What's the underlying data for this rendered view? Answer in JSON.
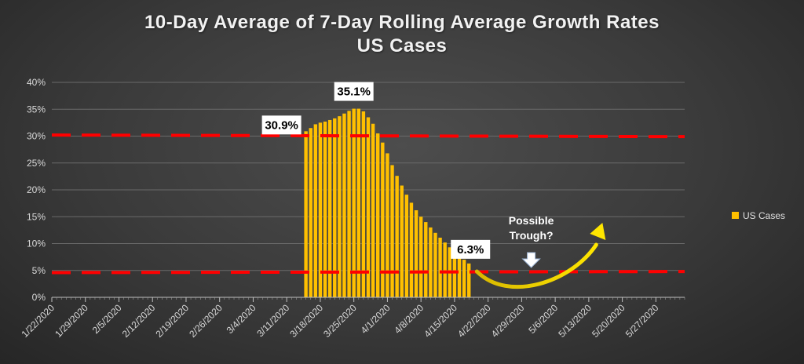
{
  "chart_data": {
    "type": "bar",
    "title": "10-Day Average of 7-Day Rolling Average Growth Rates",
    "subtitle": "US Cases",
    "ylim": [
      0,
      40
    ],
    "y_ticks": [
      "0%",
      "5%",
      "10%",
      "15%",
      "20%",
      "25%",
      "30%",
      "35%",
      "40%"
    ],
    "x_tick_labels": [
      "1/22/2020",
      "1/29/2020",
      "2/5/2020",
      "2/12/2020",
      "2/19/2020",
      "2/26/2020",
      "3/4/2020",
      "3/11/2020",
      "3/18/2020",
      "3/25/2020",
      "4/1/2020",
      "4/8/2020",
      "4/15/2020",
      "4/22/2020",
      "4/29/2020",
      "5/6/2020",
      "5/13/2020",
      "5/20/2020",
      "5/27/2020"
    ],
    "x_start": "1/22/2020",
    "x_end": "6/2/2020",
    "grid": true,
    "legend_position": "right",
    "series": [
      {
        "name": "US Cases",
        "color": "#FFC000",
        "x": [
          "3/15/2020",
          "3/16/2020",
          "3/17/2020",
          "3/18/2020",
          "3/19/2020",
          "3/20/2020",
          "3/21/2020",
          "3/22/2020",
          "3/23/2020",
          "3/24/2020",
          "3/25/2020",
          "3/26/2020",
          "3/27/2020",
          "3/28/2020",
          "3/29/2020",
          "3/30/2020",
          "3/31/2020",
          "4/1/2020",
          "4/2/2020",
          "4/3/2020",
          "4/4/2020",
          "4/5/2020",
          "4/6/2020",
          "4/7/2020",
          "4/8/2020",
          "4/9/2020",
          "4/10/2020",
          "4/11/2020",
          "4/12/2020",
          "4/13/2020",
          "4/14/2020",
          "4/15/2020",
          "4/16/2020",
          "4/17/2020",
          "4/18/2020"
        ],
        "values": [
          30.9,
          31.5,
          32.2,
          32.5,
          32.7,
          33.0,
          33.3,
          33.7,
          34.2,
          34.7,
          35.1,
          35.1,
          34.6,
          33.5,
          32.3,
          30.5,
          28.8,
          26.8,
          24.6,
          22.6,
          20.8,
          19.1,
          17.6,
          16.2,
          15.0,
          14.0,
          13.0,
          12.0,
          11.1,
          10.2,
          9.3,
          8.5,
          7.7,
          7.0,
          6.3
        ]
      }
    ],
    "reference_lines": [
      {
        "y_start": 30.2,
        "y_end": 29.9,
        "color": "#FF0000"
      },
      {
        "y_start": 4.6,
        "y_end": 4.8,
        "color": "#FF0000"
      }
    ],
    "callouts": [
      {
        "x": "3/15/2020",
        "label": "30.9%"
      },
      {
        "x": "3/25/2020",
        "label": "35.1%"
      },
      {
        "x": "4/18/2020",
        "label": "6.3%"
      }
    ],
    "annotation": {
      "lines": [
        "Possible",
        "Trough?"
      ],
      "pointer_x": "5/1/2020",
      "arrow_color": "#FFD700"
    }
  }
}
